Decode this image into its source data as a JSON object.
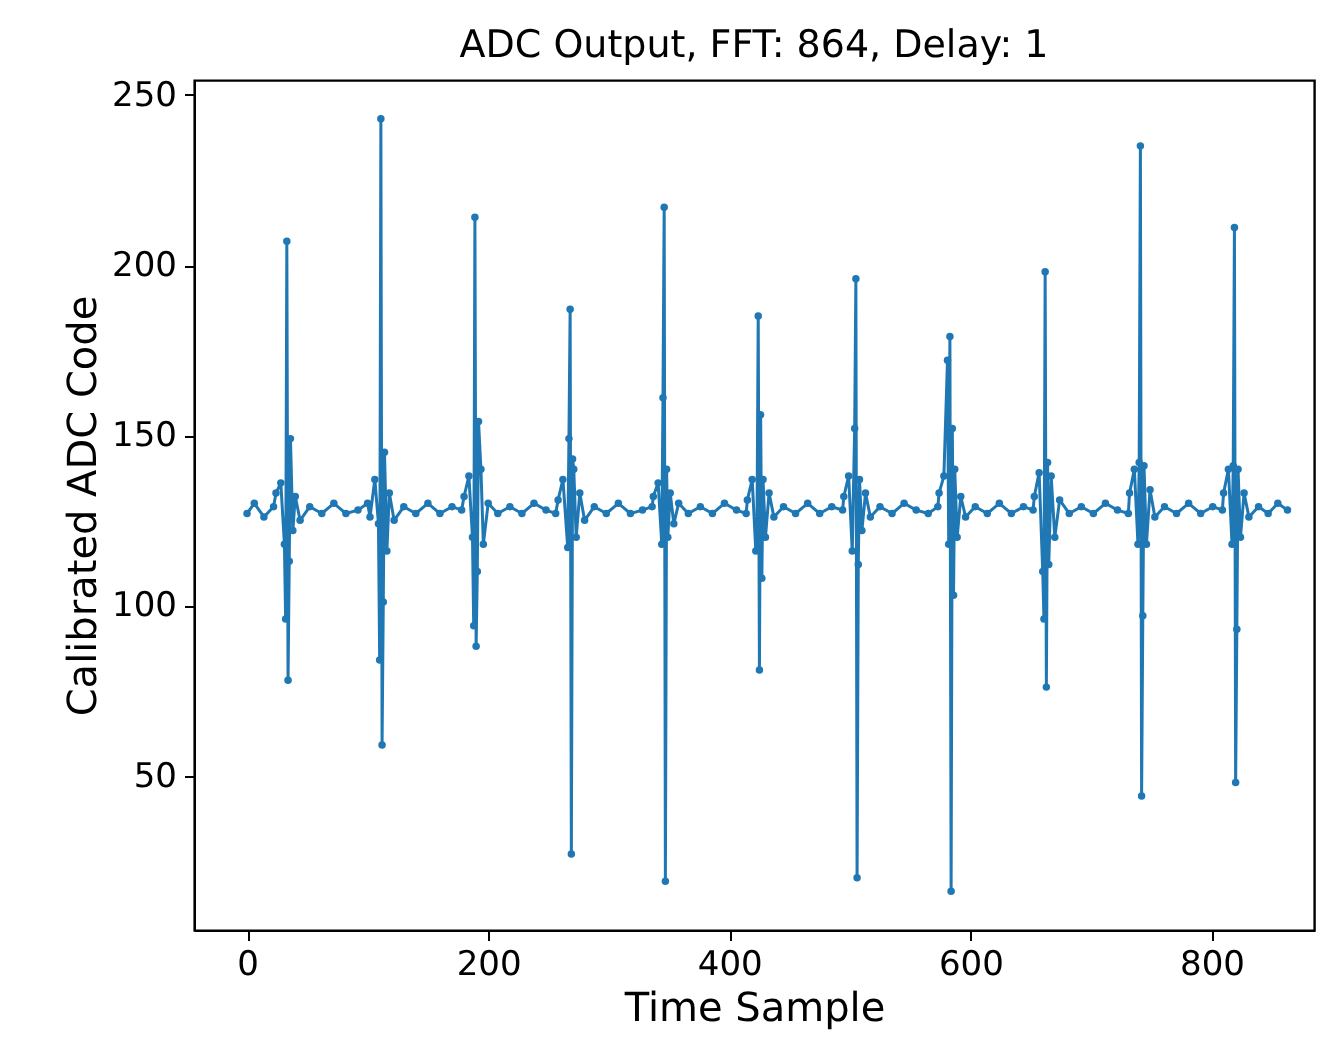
{
  "chart_data": {
    "type": "line",
    "title": "ADC Output, FFT: 864, Delay: 1",
    "xlabel": "Time Sample",
    "ylabel": "Calibrated ADC Code",
    "xlim": [
      -44,
      885
    ],
    "ylim": [
      4.65,
      254.35
    ],
    "xticks": [
      0,
      200,
      400,
      600,
      800
    ],
    "yticks": [
      50,
      100,
      150,
      200,
      250
    ],
    "grid": false,
    "marker": "circle",
    "line_style": "solid",
    "series": [
      {
        "color": "#1f77b4",
        "x": [
          0,
          6,
          14,
          22,
          24,
          28,
          31,
          32,
          33,
          34,
          35,
          36,
          38,
          40,
          44,
          52,
          62,
          72,
          82,
          92,
          100,
          102,
          106,
          109,
          110,
          111,
          112,
          113,
          114,
          116,
          118,
          122,
          130,
          140,
          150,
          160,
          170,
          178,
          180,
          184,
          187,
          188,
          189,
          190,
          191,
          192,
          194,
          196,
          200,
          208,
          218,
          228,
          238,
          248,
          256,
          258,
          262,
          266,
          267,
          268,
          269,
          270,
          271,
          273,
          276,
          280,
          288,
          298,
          308,
          318,
          328,
          336,
          337,
          341,
          344,
          345,
          346,
          347,
          348,
          349,
          351,
          354,
          358,
          366,
          376,
          386,
          396,
          406,
          414,
          415,
          419,
          422,
          423,
          424,
          425,
          426,
          427,
          428,
          430,
          433,
          437,
          445,
          455,
          465,
          475,
          485,
          494,
          495,
          499,
          502,
          504,
          505,
          506,
          507,
          508,
          510,
          513,
          517,
          525,
          535,
          545,
          555,
          565,
          573,
          574,
          578,
          581,
          582,
          583,
          584,
          585,
          586,
          587,
          589,
          592,
          596,
          604,
          614,
          624,
          634,
          644,
          652,
          653,
          657,
          660,
          661,
          662,
          663,
          664,
          665,
          667,
          670,
          674,
          682,
          692,
          702,
          712,
          722,
          731,
          732,
          736,
          739,
          740,
          741,
          742,
          743,
          744,
          746,
          749,
          753,
          761,
          771,
          781,
          791,
          801,
          809,
          810,
          814,
          817,
          818,
          819,
          820,
          821,
          822,
          824,
          827,
          831,
          839,
          847,
          855,
          863
        ],
        "values": [
          127,
          130,
          126,
          129,
          133,
          136,
          118,
          96,
          207,
          78,
          113,
          149,
          122,
          132,
          125,
          129,
          127,
          130,
          127,
          128,
          130,
          126,
          137,
          124,
          84,
          243,
          59,
          101,
          145,
          116,
          133,
          125,
          129,
          127,
          130,
          127,
          129,
          128,
          132,
          138,
          120,
          94,
          214,
          88,
          110,
          154,
          140,
          118,
          130,
          127,
          129,
          127,
          130,
          128,
          127,
          131,
          137,
          117,
          149,
          187,
          27,
          143,
          140,
          120,
          133,
          125,
          129,
          127,
          130,
          127,
          128,
          129,
          132,
          136,
          118,
          161,
          217,
          19,
          140,
          120,
          133,
          124,
          130,
          127,
          129,
          127,
          130,
          128,
          127,
          131,
          137,
          116,
          124,
          185,
          81,
          156,
          108,
          137,
          120,
          133,
          126,
          129,
          127,
          130,
          127,
          129,
          128,
          132,
          138,
          116,
          152,
          196,
          20,
          112,
          137,
          122,
          133,
          126,
          129,
          127,
          130,
          128,
          127,
          129,
          133,
          138,
          172,
          118,
          179,
          16,
          152,
          103,
          140,
          120,
          132,
          126,
          129,
          127,
          130,
          127,
          129,
          128,
          132,
          139,
          110,
          96,
          198,
          76,
          142,
          112,
          138,
          120,
          131,
          127,
          129,
          127,
          130,
          128,
          127,
          133,
          140,
          118,
          142,
          235,
          44,
          97,
          141,
          118,
          134,
          126,
          129,
          127,
          130,
          127,
          129,
          128,
          133,
          140,
          118,
          141,
          211,
          48,
          93,
          140,
          120,
          133,
          126,
          129,
          127,
          130,
          128
        ]
      }
    ]
  }
}
